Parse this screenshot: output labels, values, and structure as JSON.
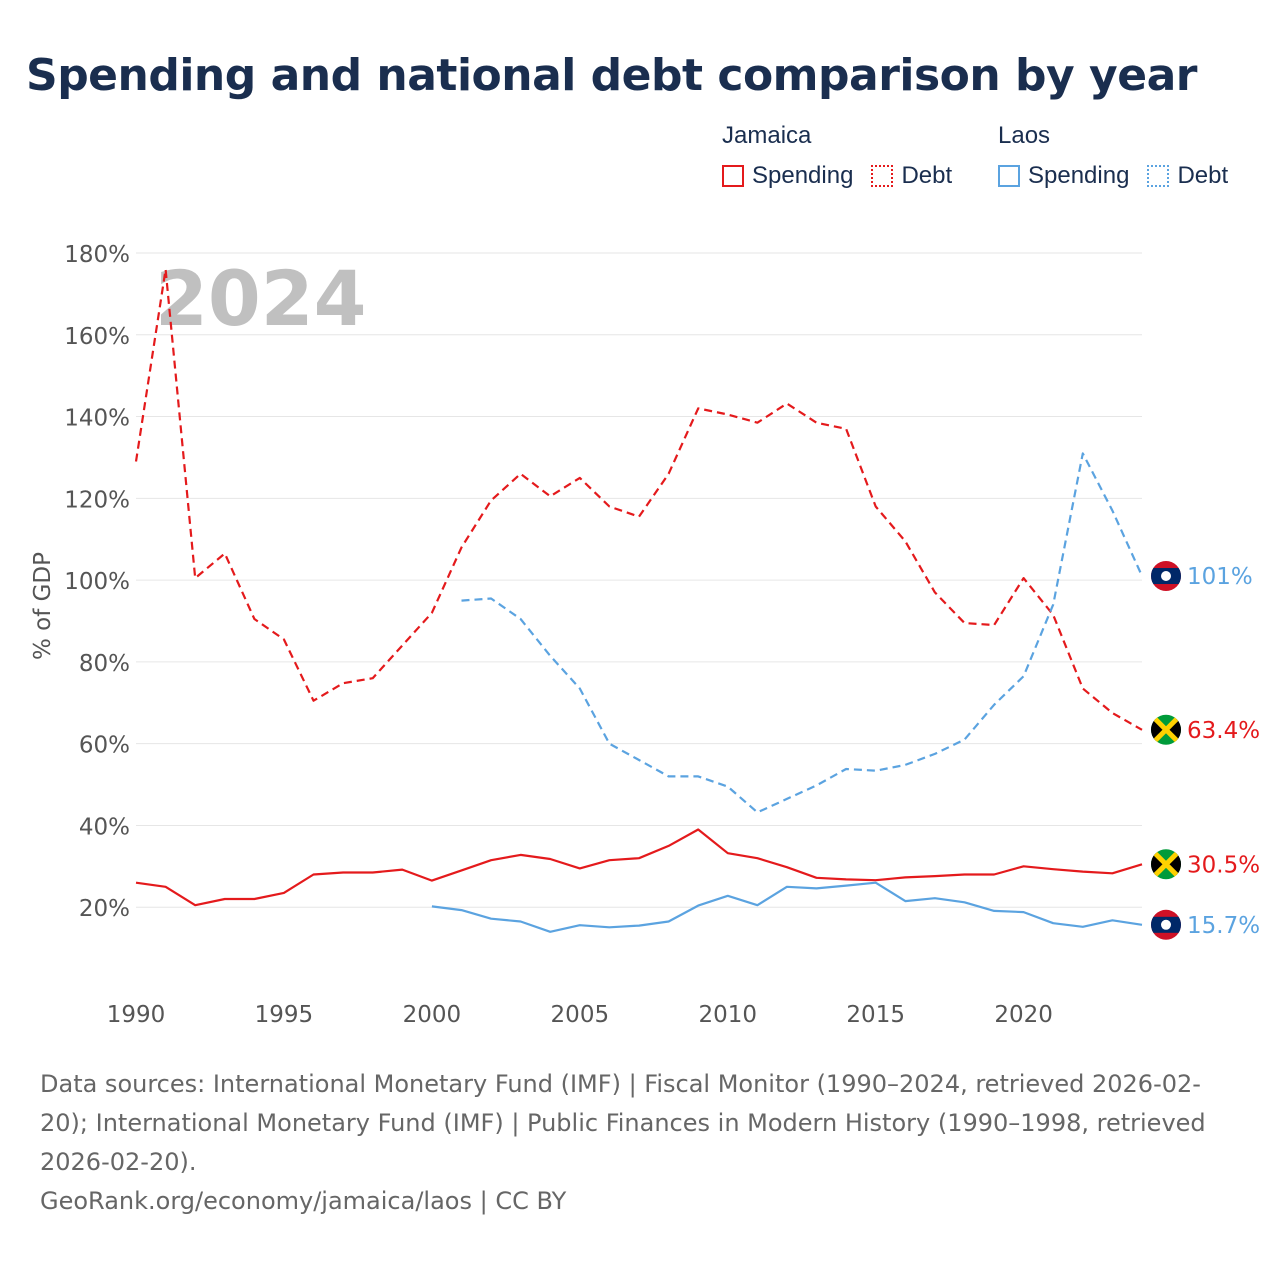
{
  "title": "Spending and national debt comparison by year",
  "legend": {
    "groups": [
      {
        "name": "Jamaica",
        "items": [
          "Spending",
          "Debt"
        ]
      },
      {
        "name": "Laos",
        "items": [
          "Spending",
          "Debt"
        ]
      }
    ]
  },
  "colors": {
    "jamaica": "#e41a1c",
    "laos": "#5ba3e0",
    "grid": "#e6e6e6",
    "axis_text": "#555555",
    "watermark": "#c0c0c0"
  },
  "footer": {
    "sources": "Data sources: International Monetary Fund (IMF) | Fiscal Monitor (1990–2024, retrieved 2026-02-20); International Monetary Fund (IMF) | Public Finances in Modern History (1990–1998, retrieved 2026-02-20).",
    "credit": "GeoRank.org/economy/jamaica/laos | CC BY"
  },
  "chart_data": {
    "type": "line",
    "year_label": "2024",
    "ylabel": "% of GDP",
    "xlabel": "",
    "xlim": [
      1990,
      2024
    ],
    "ylim": [
      0,
      180
    ],
    "x_ticks": [
      1990,
      1995,
      2000,
      2005,
      2010,
      2015,
      2020
    ],
    "y_ticks": [
      20,
      40,
      60,
      80,
      100,
      120,
      140,
      160,
      180
    ],
    "y_tick_labels": [
      "20%",
      "40%",
      "60%",
      "80%",
      "100%",
      "120%",
      "140%",
      "160%",
      "180%"
    ],
    "series": [
      {
        "name": "Jamaica Debt",
        "country": "Jamaica",
        "metric": "Debt",
        "style": "dashed",
        "color": "#e41a1c",
        "end_label": "63.4%",
        "flag": "jamaica",
        "x": [
          1990,
          1991,
          1992,
          1993,
          1994,
          1995,
          1996,
          1997,
          1998,
          1999,
          2000,
          2001,
          2002,
          2003,
          2004,
          2005,
          2006,
          2007,
          2008,
          2009,
          2010,
          2011,
          2012,
          2013,
          2014,
          2015,
          2016,
          2017,
          2018,
          2019,
          2020,
          2021,
          2022,
          2023,
          2024
        ],
        "values": [
          129,
          176,
          100.5,
          106.5,
          90.5,
          85.5,
          70.5,
          74.8,
          76,
          84,
          92,
          108,
          119.5,
          126,
          120.5,
          125,
          118,
          115.5,
          126,
          142,
          140.5,
          138.5,
          143.2,
          138.5,
          137,
          118,
          109.5,
          97,
          89.5,
          89,
          100.5,
          91.5,
          73.5,
          67.5,
          63.4
        ]
      },
      {
        "name": "Laos Debt",
        "country": "Laos",
        "metric": "Debt",
        "style": "dashed",
        "color": "#5ba3e0",
        "end_label": "101%",
        "flag": "laos",
        "x": [
          2001,
          2002,
          2003,
          2004,
          2005,
          2006,
          2007,
          2008,
          2009,
          2010,
          2011,
          2012,
          2013,
          2014,
          2015,
          2016,
          2017,
          2018,
          2019,
          2020,
          2021,
          2022,
          2023,
          2024
        ],
        "values": [
          95,
          95.5,
          90.5,
          81.5,
          73.5,
          60,
          56,
          52,
          52,
          49.5,
          43.2,
          46.5,
          49.8,
          53.8,
          53.4,
          54.8,
          57.5,
          61,
          69.5,
          76.5,
          94,
          131,
          117,
          101
        ]
      },
      {
        "name": "Jamaica Spending",
        "country": "Jamaica",
        "metric": "Spending",
        "style": "solid",
        "color": "#e41a1c",
        "end_label": "30.5%",
        "flag": "jamaica",
        "x": [
          1990,
          1991,
          1992,
          1993,
          1994,
          1995,
          1996,
          1997,
          1998,
          1999,
          2000,
          2001,
          2002,
          2003,
          2004,
          2005,
          2006,
          2007,
          2008,
          2009,
          2010,
          2011,
          2012,
          2013,
          2014,
          2015,
          2016,
          2017,
          2018,
          2019,
          2020,
          2021,
          2022,
          2023,
          2024
        ],
        "values": [
          26,
          25,
          20.5,
          22,
          22,
          23.5,
          28,
          28.5,
          28.5,
          29.2,
          26.5,
          29,
          31.5,
          32.8,
          31.8,
          29.5,
          31.5,
          32,
          35,
          39,
          33.2,
          32,
          29.8,
          27.2,
          26.8,
          26.6,
          27.3,
          27.6,
          28,
          28,
          30,
          29.3,
          28.7,
          28.3,
          30.5
        ]
      },
      {
        "name": "Laos Spending",
        "country": "Laos",
        "metric": "Spending",
        "style": "solid",
        "color": "#5ba3e0",
        "end_label": "15.7%",
        "flag": "laos",
        "x": [
          2000,
          2001,
          2002,
          2003,
          2004,
          2005,
          2006,
          2007,
          2008,
          2009,
          2010,
          2011,
          2012,
          2013,
          2014,
          2015,
          2016,
          2017,
          2018,
          2019,
          2020,
          2021,
          2022,
          2023,
          2024
        ],
        "values": [
          20.2,
          19.3,
          17.2,
          16.5,
          14,
          15.6,
          15.1,
          15.5,
          16.5,
          20.4,
          22.8,
          20.5,
          25,
          24.6,
          25.3,
          26,
          21.5,
          22.2,
          21.2,
          19.1,
          18.8,
          16.1,
          15.2,
          16.8,
          15.7
        ]
      }
    ]
  }
}
